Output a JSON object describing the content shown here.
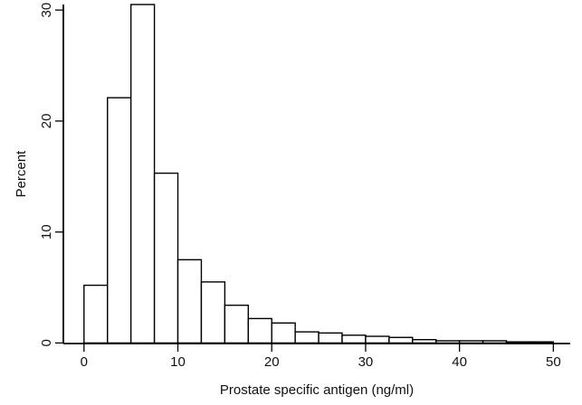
{
  "chart_data": {
    "type": "bar",
    "title": "",
    "xlabel": "Prostate specific antigen (ng/ml)",
    "ylabel": "Percent",
    "xlim": [
      0,
      50
    ],
    "ylim": [
      0,
      30
    ],
    "xticks": [
      "0",
      "10",
      "20",
      "30",
      "40",
      "50"
    ],
    "yticks": [
      "0",
      "10",
      "20",
      "30"
    ],
    "bin_width": 2.5,
    "bins": [
      {
        "start": 0,
        "end": 2.5,
        "value": 5.2
      },
      {
        "start": 2.5,
        "end": 5,
        "value": 22.1
      },
      {
        "start": 5,
        "end": 7.5,
        "value": 30.5
      },
      {
        "start": 7.5,
        "end": 10,
        "value": 15.3
      },
      {
        "start": 10,
        "end": 12.5,
        "value": 7.5
      },
      {
        "start": 12.5,
        "end": 15,
        "value": 5.5
      },
      {
        "start": 15,
        "end": 17.5,
        "value": 3.4
      },
      {
        "start": 17.5,
        "end": 20,
        "value": 2.2
      },
      {
        "start": 20,
        "end": 22.5,
        "value": 1.8
      },
      {
        "start": 22.5,
        "end": 25,
        "value": 1.0
      },
      {
        "start": 25,
        "end": 27.5,
        "value": 0.9
      },
      {
        "start": 27.5,
        "end": 30,
        "value": 0.7
      },
      {
        "start": 30,
        "end": 32.5,
        "value": 0.6
      },
      {
        "start": 32.5,
        "end": 35,
        "value": 0.5
      },
      {
        "start": 35,
        "end": 37.5,
        "value": 0.3
      },
      {
        "start": 37.5,
        "end": 40,
        "value": 0.2
      },
      {
        "start": 40,
        "end": 42.5,
        "value": 0.2
      },
      {
        "start": 42.5,
        "end": 45,
        "value": 0.2
      },
      {
        "start": 45,
        "end": 47.5,
        "value": 0.1
      },
      {
        "start": 47.5,
        "end": 50,
        "value": 0.1
      }
    ]
  },
  "colors": {
    "background": "#ffffff",
    "axis": "#000000",
    "bar_fill": "#ffffff",
    "bar_stroke": "#000000",
    "text": "#111111"
  }
}
